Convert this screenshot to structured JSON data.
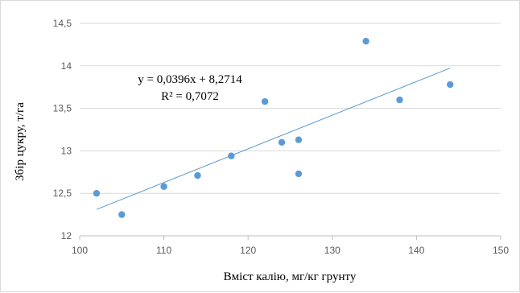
{
  "chart_data": {
    "type": "scatter",
    "title": "",
    "xlabel": "Вміст калію, мг/кг грунту",
    "ylabel": "Збір цукру, т/га",
    "xlim": [
      100,
      150
    ],
    "ylim": [
      12,
      14.5
    ],
    "x_ticks": [
      "100",
      "110",
      "120",
      "130",
      "140",
      "150"
    ],
    "y_ticks": [
      "12",
      "12,5",
      "13",
      "13,5",
      "14",
      "14,5"
    ],
    "grid": "horizontal",
    "legend": "none",
    "points": [
      {
        "x": 102,
        "y": 12.5
      },
      {
        "x": 105,
        "y": 12.25
      },
      {
        "x": 110,
        "y": 12.58
      },
      {
        "x": 114,
        "y": 12.71
      },
      {
        "x": 118,
        "y": 12.94
      },
      {
        "x": 122,
        "y": 13.58
      },
      {
        "x": 124,
        "y": 13.1
      },
      {
        "x": 126,
        "y": 13.13
      },
      {
        "x": 126,
        "y": 12.73
      },
      {
        "x": 134,
        "y": 14.29
      },
      {
        "x": 138,
        "y": 13.6
      },
      {
        "x": 144,
        "y": 13.78
      }
    ],
    "trendline": {
      "type": "linear",
      "slope": 0.0396,
      "intercept": 8.2714,
      "x_range": [
        102,
        144
      ],
      "equation": "y = 0,0396x + 8,2714",
      "r_squared": "R² = 0,7072"
    },
    "colors": {
      "marker": "#5b9bd5",
      "trendline": "#5b9bd5",
      "gridline": "#d9d9d9",
      "axis": "#bfbfbf"
    }
  }
}
